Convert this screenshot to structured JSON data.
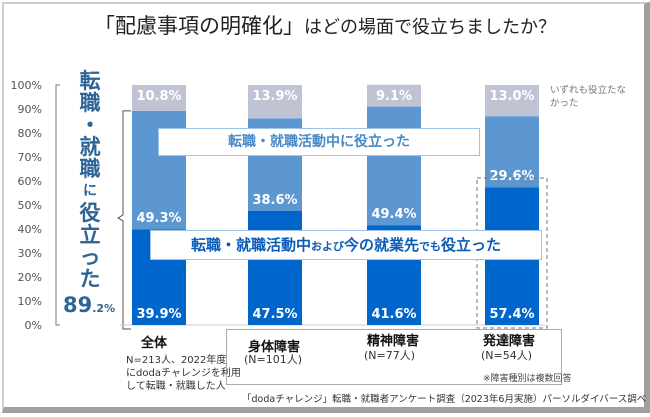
{
  "title": {
    "bracket": "「配慮事項の明確化」",
    "rest": "はどの場面で役立ちましたか？"
  },
  "chart_data": {
    "type": "bar",
    "stacked": true,
    "ylim": [
      0,
      100
    ],
    "yticks": [
      "0%",
      "10%",
      "20%",
      "30%",
      "40%",
      "50%",
      "60%",
      "70%",
      "80%",
      "90%",
      "100%"
    ],
    "categories": [
      "全体",
      "身体障害",
      "精神障害",
      "発達障害"
    ],
    "category_n": [
      "N=213人、2022年度にdodaチャレンジを利用して転職・就職した人",
      "(N=101人)",
      "(N=77人)",
      "(N=54人)"
    ],
    "series": [
      {
        "name": "転職・就職活動中および今の就業先でも役立った",
        "values": [
          39.9,
          47.5,
          41.6,
          57.4
        ],
        "labels": [
          "39.9%",
          "47.5%",
          "41.6%",
          "57.4%"
        ],
        "color": "#0066cc"
      },
      {
        "name": "転職・就職活動中に役立った",
        "values": [
          49.3,
          38.6,
          49.4,
          29.6
        ],
        "labels": [
          "49.3%",
          "38.6%",
          "49.4%",
          "29.6%"
        ],
        "color": "#5d97d2"
      },
      {
        "name": "いずれも役立たなかった",
        "values": [
          10.8,
          13.9,
          9.1,
          13.0
        ],
        "labels": [
          "10.8%",
          "13.9%",
          "9.1%",
          "13.0%"
        ],
        "color": "#c0c3d3"
      }
    ],
    "highlighted_category": "発達障害"
  },
  "series_labels": {
    "upper": "転職・就職活動中に役立った",
    "lower": [
      "転職・就職活動中",
      "および",
      "今の就業先",
      "でも",
      "役立った"
    ],
    "none": "いずれも役立たなかった"
  },
  "callout": {
    "chars": [
      "転",
      "職",
      "・",
      "就",
      "職",
      "に",
      "役",
      "立",
      "っ",
      "た"
    ],
    "value": "89",
    "decimal": ".2%"
  },
  "notes": {
    "all": [
      "N=213人、2022年度",
      "にdodaチャレンジを利用",
      "して転職・就職した人"
    ],
    "multi": "※障害種別は複数回答",
    "source": "「dodaチャレンジ」転職・就職者アンケート調査（2023年6月実施）パーソルダイバース調べ"
  }
}
